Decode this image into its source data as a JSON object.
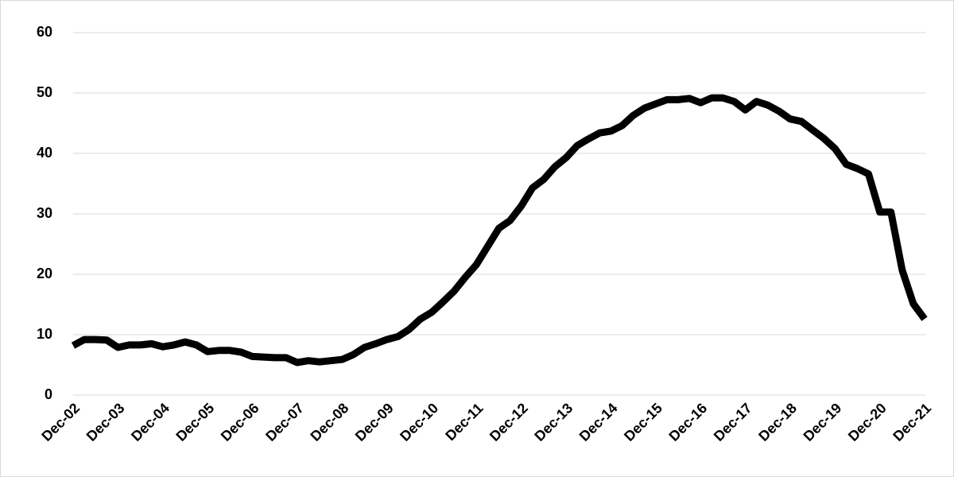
{
  "chart_data": {
    "type": "line",
    "categories": [
      "Dec-02",
      null,
      null,
      null,
      "Dec-03",
      null,
      null,
      null,
      "Dec-04",
      null,
      null,
      null,
      "Dec-05",
      null,
      null,
      null,
      "Dec-06",
      null,
      null,
      null,
      "Dec-07",
      null,
      null,
      null,
      "Dec-08",
      null,
      null,
      null,
      "Dec-09",
      null,
      null,
      null,
      "Dec-10",
      null,
      null,
      null,
      "Dec-11",
      null,
      null,
      null,
      "Dec-12",
      null,
      null,
      null,
      "Dec-13",
      null,
      null,
      null,
      "Dec-14",
      null,
      null,
      null,
      "Dec-15",
      null,
      null,
      null,
      "Dec-16",
      null,
      null,
      null,
      "Dec-17",
      null,
      null,
      null,
      "Dec-18",
      null,
      null,
      null,
      "Dec-19",
      null,
      null,
      null,
      "Dec-20",
      null,
      null,
      null,
      "Dec-21"
    ],
    "series": [
      {
        "color": "#000000",
        "values": [
          8.2,
          9.2,
          9.2,
          9.1,
          7.9,
          8.3,
          8.3,
          8.5,
          8.0,
          8.3,
          8.8,
          8.3,
          7.2,
          7.4,
          7.4,
          7.1,
          6.4,
          6.3,
          6.2,
          6.2,
          5.4,
          5.7,
          5.5,
          5.7,
          5.9,
          6.7,
          7.9,
          8.5,
          9.2,
          9.7,
          10.9,
          12.6,
          13.7,
          15.4,
          17.2,
          19.5,
          21.6,
          24.6,
          27.6,
          28.9,
          31.3,
          34.3,
          35.7,
          37.8,
          39.3,
          41.3,
          42.4,
          43.4,
          43.7,
          44.6,
          46.3,
          47.5,
          48.2,
          48.9,
          48.9,
          49.1,
          48.4,
          49.2,
          49.2,
          48.6,
          47.2,
          48.6,
          48.0,
          47.0,
          45.7,
          45.3,
          43.9,
          42.5,
          40.8,
          38.2,
          37.5,
          36.6,
          30.3,
          30.3,
          20.7,
          15.1,
          12.6
        ]
      }
    ],
    "ylim": [
      0,
      60
    ],
    "yticks": [
      0,
      10,
      20,
      30,
      40,
      50,
      60
    ],
    "grid": true
  }
}
